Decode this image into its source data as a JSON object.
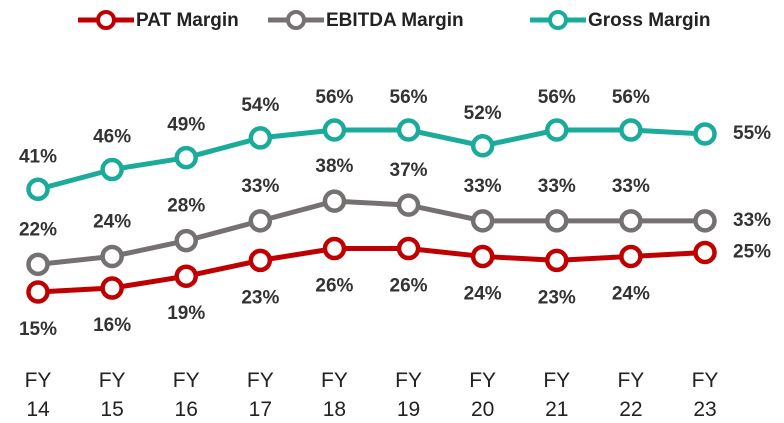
{
  "chart_data": {
    "type": "line",
    "categories": [
      "FY 14",
      "FY 15",
      "FY 16",
      "FY 17",
      "FY 18",
      "FY 19",
      "FY 20",
      "FY 21",
      "FY 22",
      "FY 23"
    ],
    "series": [
      {
        "name": "PAT Margin",
        "color": "#c00000",
        "values": [
          15,
          16,
          19,
          23,
          26,
          26,
          24,
          23,
          24,
          25
        ],
        "value_labels": [
          "15%",
          "16%",
          "19%",
          "23%",
          "26%",
          "26%",
          "24%",
          "23%",
          "24%",
          "25%"
        ]
      },
      {
        "name": "EBITDA Margin",
        "color": "#767171",
        "values": [
          22,
          24,
          28,
          33,
          38,
          37,
          33,
          33,
          33,
          33
        ],
        "value_labels": [
          "22%",
          "24%",
          "28%",
          "33%",
          "38%",
          "37%",
          "33%",
          "33%",
          "33%",
          "33%"
        ]
      },
      {
        "name": "Gross Margin",
        "color": "#1aab9b",
        "values": [
          41,
          46,
          49,
          54,
          56,
          56,
          52,
          56,
          56,
          55
        ],
        "value_labels": [
          "41%",
          "46%",
          "49%",
          "54%",
          "56%",
          "56%",
          "52%",
          "56%",
          "56%",
          "55%"
        ]
      }
    ],
    "legend": "top"
  }
}
